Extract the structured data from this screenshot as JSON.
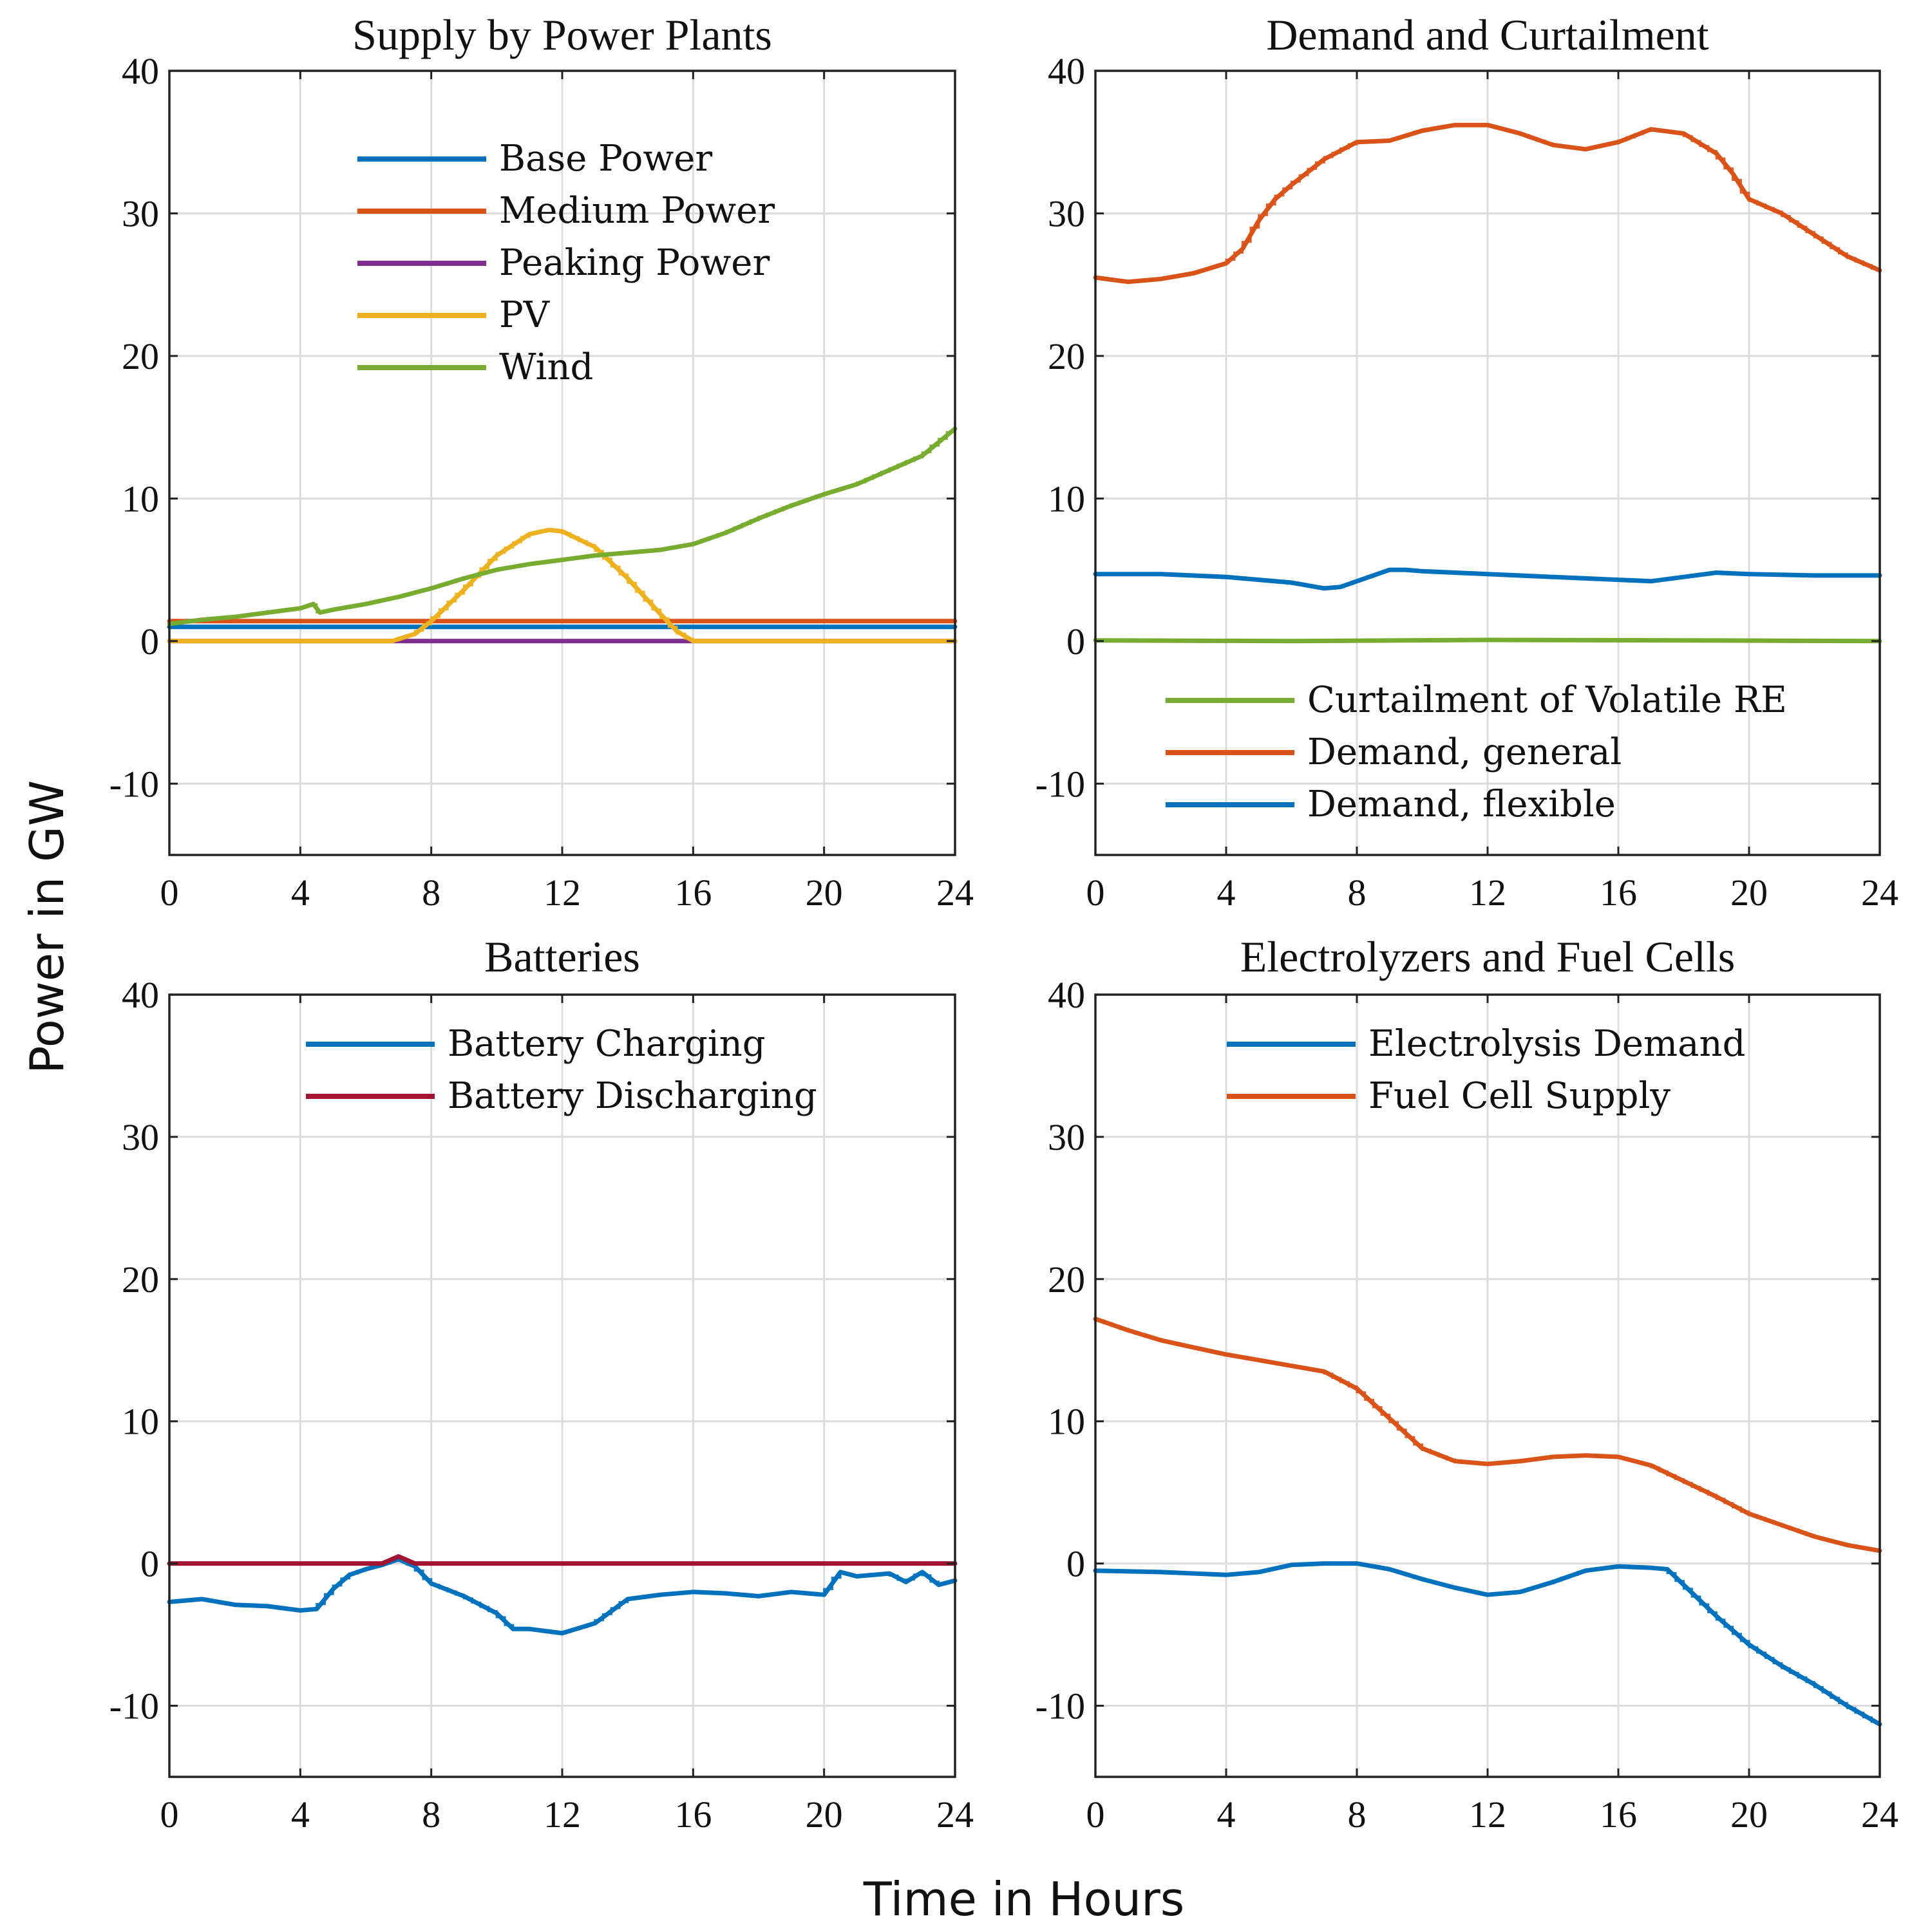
{
  "figure": {
    "xlabel": "Time in Hours",
    "ylabel": "Power in GW"
  },
  "chart_data": [
    {
      "type": "line",
      "title": "Supply by Power Plants",
      "xlim": [
        0,
        24
      ],
      "ylim": [
        -15,
        40
      ],
      "xticks": [
        "0",
        "4",
        "8",
        "12",
        "16",
        "20",
        "24"
      ],
      "yticks": [
        "-10",
        "0",
        "10",
        "20",
        "30",
        "40"
      ],
      "grid": true,
      "legend_position": "top-center",
      "series": [
        {
          "name": "Base Power",
          "color": "#0072BD",
          "x": [
            0,
            24
          ],
          "y": [
            1.0,
            1.0
          ]
        },
        {
          "name": "Medium Power",
          "color": "#D95319",
          "x": [
            0,
            24
          ],
          "y": [
            1.4,
            1.4
          ]
        },
        {
          "name": "Peaking Power",
          "color": "#7E2F8E",
          "x": [
            0,
            24
          ],
          "y": [
            0.0,
            0.0
          ]
        },
        {
          "name": "PV",
          "color": "#EDB120",
          "x": [
            0,
            6.8,
            7.5,
            8,
            9,
            10,
            11,
            11.6,
            12,
            13,
            14,
            15,
            15.5,
            16,
            24
          ],
          "y": [
            0,
            0,
            0.5,
            1.4,
            3.6,
            6.0,
            7.5,
            7.8,
            7.7,
            6.6,
            4.4,
            1.9,
            0.7,
            0,
            0
          ]
        },
        {
          "name": "Wind",
          "color": "#77AC30",
          "x": [
            0,
            1,
            2,
            3,
            4,
            4.4,
            4.6,
            5,
            6,
            7,
            8,
            9,
            10,
            11,
            12,
            13,
            14,
            15,
            16,
            17,
            18,
            19,
            20,
            21,
            22,
            23,
            24
          ],
          "y": [
            1.2,
            1.5,
            1.7,
            2.0,
            2.3,
            2.6,
            2.0,
            2.2,
            2.6,
            3.1,
            3.7,
            4.4,
            5.0,
            5.4,
            5.7,
            6.0,
            6.2,
            6.4,
            6.8,
            7.6,
            8.6,
            9.5,
            10.3,
            11.0,
            12.0,
            13.0,
            14.9
          ]
        }
      ]
    },
    {
      "type": "line",
      "title": "Demand and Curtailment",
      "xlim": [
        0,
        24
      ],
      "ylim": [
        -15,
        40
      ],
      "xticks": [
        "0",
        "4",
        "8",
        "12",
        "16",
        "20",
        "24"
      ],
      "yticks": [
        "-10",
        "0",
        "10",
        "20",
        "30",
        "40"
      ],
      "grid": true,
      "legend_position": "bottom-right",
      "series": [
        {
          "name": "Curtailment of Volatile RE",
          "color": "#77AC30",
          "x": [
            0,
            6,
            12,
            18,
            24
          ],
          "y": [
            0.05,
            0.0,
            0.08,
            0.05,
            0.0
          ]
        },
        {
          "name": "Demand, general",
          "color": "#D95319",
          "x": [
            0,
            1,
            2,
            3,
            4,
            4.5,
            5,
            5.5,
            6,
            7,
            8,
            9,
            10,
            11,
            12,
            13,
            14,
            15,
            16,
            17,
            18,
            19,
            19.5,
            20,
            21,
            22,
            23,
            24
          ],
          "y": [
            25.5,
            25.2,
            25.4,
            25.8,
            26.5,
            27.5,
            29.5,
            31.0,
            32.0,
            33.8,
            35.0,
            35.1,
            35.8,
            36.2,
            36.2,
            35.6,
            34.8,
            34.5,
            35.0,
            35.9,
            35.6,
            34.2,
            32.8,
            31.0,
            30.0,
            28.5,
            27.0,
            26.0
          ]
        },
        {
          "name": "Demand, flexible",
          "color": "#0072BD",
          "x": [
            0,
            2,
            4,
            5,
            6,
            7,
            7.5,
            8,
            9,
            9.5,
            10,
            12,
            14,
            16,
            17,
            18,
            19,
            20,
            22,
            24
          ],
          "y": [
            4.7,
            4.7,
            4.5,
            4.3,
            4.1,
            3.7,
            3.8,
            4.2,
            5.0,
            5.0,
            4.9,
            4.7,
            4.5,
            4.3,
            4.2,
            4.5,
            4.8,
            4.7,
            4.6,
            4.6
          ]
        }
      ]
    },
    {
      "type": "line",
      "title": "Batteries",
      "xlim": [
        0,
        24
      ],
      "ylim": [
        -15,
        40
      ],
      "xticks": [
        "0",
        "4",
        "8",
        "12",
        "16",
        "20",
        "24"
      ],
      "yticks": [
        "-10",
        "0",
        "10",
        "20",
        "30",
        "40"
      ],
      "grid": true,
      "legend_position": "top-center",
      "series": [
        {
          "name": "Battery Charging",
          "color": "#0072BD",
          "x": [
            0,
            1,
            2,
            3,
            4,
            4.5,
            5,
            5.5,
            6,
            6.5,
            7,
            7.5,
            8,
            9,
            10,
            10.5,
            11,
            12,
            13,
            14,
            15,
            16,
            17,
            18,
            19,
            20,
            20.5,
            21,
            22,
            22.5,
            23,
            23.5,
            24
          ],
          "y": [
            -2.7,
            -2.5,
            -2.9,
            -3.0,
            -3.3,
            -3.2,
            -1.8,
            -0.8,
            -0.4,
            -0.1,
            0.3,
            -0.2,
            -1.4,
            -2.3,
            -3.5,
            -4.6,
            -4.6,
            -4.9,
            -4.2,
            -2.5,
            -2.2,
            -2.0,
            -2.1,
            -2.3,
            -2.0,
            -2.2,
            -0.6,
            -0.9,
            -0.7,
            -1.3,
            -0.6,
            -1.5,
            -1.2
          ]
        },
        {
          "name": "Battery Discharging",
          "color": "#A2142F",
          "x": [
            0,
            6.5,
            6.8,
            7.0,
            7.2,
            7.5,
            24
          ],
          "y": [
            0,
            0,
            0.3,
            0.5,
            0.3,
            0,
            0
          ]
        }
      ]
    },
    {
      "type": "line",
      "title": "Electrolyzers and Fuel Cells",
      "xlim": [
        0,
        24
      ],
      "ylim": [
        -15,
        40
      ],
      "xticks": [
        "0",
        "4",
        "8",
        "12",
        "16",
        "20",
        "24"
      ],
      "yticks": [
        "-10",
        "0",
        "10",
        "20",
        "30",
        "40"
      ],
      "grid": true,
      "legend_position": "top-right",
      "series": [
        {
          "name": "Electrolysis Demand",
          "color": "#0072BD",
          "x": [
            0,
            2,
            4,
            5,
            6,
            7,
            8,
            9,
            10,
            11,
            12,
            13,
            14,
            15,
            16,
            17,
            17.5,
            18,
            19,
            20,
            21,
            22,
            23,
            24
          ],
          "y": [
            -0.5,
            -0.6,
            -0.8,
            -0.6,
            -0.1,
            0.0,
            0.0,
            -0.4,
            -1.1,
            -1.7,
            -2.2,
            -2.0,
            -1.3,
            -0.5,
            -0.2,
            -0.3,
            -0.4,
            -1.5,
            -3.7,
            -5.7,
            -7.2,
            -8.5,
            -10.0,
            -11.3
          ]
        },
        {
          "name": "Fuel Cell Supply",
          "color": "#D95319",
          "x": [
            0,
            1,
            2,
            3,
            4,
            5,
            6,
            7,
            8,
            9,
            10,
            11,
            12,
            13,
            14,
            15,
            16,
            17,
            18,
            19,
            20,
            21,
            22,
            23,
            24
          ],
          "y": [
            17.2,
            16.4,
            15.7,
            15.2,
            14.7,
            14.3,
            13.9,
            13.5,
            12.3,
            10.2,
            8.1,
            7.2,
            7.0,
            7.2,
            7.5,
            7.6,
            7.5,
            6.9,
            5.8,
            4.7,
            3.5,
            2.7,
            1.9,
            1.3,
            0.9
          ]
        }
      ]
    }
  ]
}
